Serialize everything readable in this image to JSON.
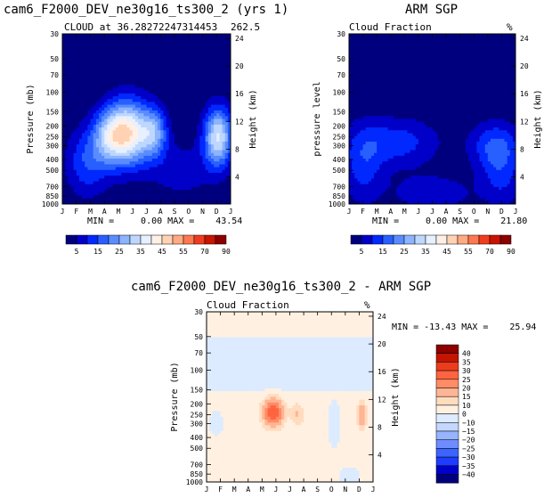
{
  "chart_data": [
    {
      "type": "heatmap",
      "panel": "model",
      "title": "cam6_F2000_DEV_ne30g16_ts300_2 (yrs 1)",
      "subtitle_left": "CLOUD at 36.28272247314453",
      "subtitle_right": "262.5",
      "ylabel": "Pressure (mb)",
      "y2label": "Height (km)",
      "x_ticks": [
        "J",
        "F",
        "M",
        "A",
        "M",
        "J",
        "J",
        "A",
        "S",
        "O",
        "N",
        "D",
        "J"
      ],
      "y_ticks": [
        "30",
        "50",
        "70",
        "100",
        "150",
        "200",
        "250",
        "300",
        "400",
        "500",
        "700",
        "850",
        "1000"
      ],
      "y_ticks_values": [
        30,
        50,
        70,
        100,
        150,
        200,
        250,
        300,
        400,
        500,
        700,
        850,
        1000
      ],
      "y2_ticks": [
        "24",
        "20",
        "16",
        "12",
        "8",
        "4"
      ],
      "y2_ticks_values": [
        24,
        20,
        16,
        12,
        8,
        4
      ],
      "min_label": "MIN =",
      "min_value": "0.00",
      "max_label": "MAX =",
      "max_value": "43.54",
      "features": [
        {
          "month": 4.7,
          "pressure": 230,
          "peak": 42,
          "dm": 1.6,
          "dp": 0.65
        },
        {
          "month": 3.3,
          "pressure": 250,
          "peak": 18,
          "dm": 1.2,
          "dp": 0.55
        },
        {
          "month": 6.6,
          "pressure": 230,
          "peak": 20,
          "dm": 0.9,
          "dp": 0.5
        },
        {
          "month": 11.1,
          "pressure": 250,
          "peak": 35,
          "dm": 1.0,
          "dp": 0.6
        },
        {
          "month": 1.8,
          "pressure": 420,
          "peak": 14,
          "dm": 1.5,
          "dp": 0.7
        },
        {
          "month": 8.5,
          "pressure": 500,
          "peak": 7,
          "dm": 2.5,
          "dp": 0.6
        }
      ]
    },
    {
      "type": "heatmap",
      "panel": "observation",
      "title": "ARM SGP",
      "subtitle_left": "Cloud Fraction",
      "subtitle_right": "%",
      "ylabel": "pressure level",
      "y2label": "Height (km)",
      "x_ticks": [
        "J",
        "F",
        "M",
        "A",
        "M",
        "J",
        "J",
        "A",
        "S",
        "O",
        "N",
        "D",
        "J"
      ],
      "y_ticks": [
        "30",
        "50",
        "70",
        "100",
        "150",
        "200",
        "250",
        "300",
        "400",
        "500",
        "700",
        "850",
        "1000"
      ],
      "y_ticks_values": [
        30,
        50,
        70,
        100,
        150,
        200,
        250,
        300,
        400,
        500,
        700,
        850,
        1000
      ],
      "y2_ticks": [
        "24",
        "20",
        "16",
        "12",
        "8",
        "4"
      ],
      "y2_ticks_values": [
        24,
        20,
        16,
        12,
        8,
        4
      ],
      "min_label": "MIN =",
      "min_value": "0.00",
      "max_label": "MAX =",
      "max_value": "21.80",
      "features": [
        {
          "month": 3.5,
          "pressure": 280,
          "peak": 12,
          "dm": 3.0,
          "dp": 0.5
        },
        {
          "month": 10.5,
          "pressure": 300,
          "peak": 13,
          "dm": 1.8,
          "dp": 0.5
        },
        {
          "month": 1.0,
          "pressure": 450,
          "peak": 11,
          "dm": 1.5,
          "dp": 0.8
        },
        {
          "month": 11.0,
          "pressure": 550,
          "peak": 10,
          "dm": 1.5,
          "dp": 0.7
        },
        {
          "month": 6.0,
          "pressure": 800,
          "peak": 8,
          "dm": 3.0,
          "dp": 0.4
        }
      ]
    },
    {
      "type": "heatmap",
      "panel": "difference",
      "title": "cam6_F2000_DEV_ne30g16_ts300_2 - ARM SGP",
      "subtitle_left": "Cloud Fraction",
      "subtitle_right": "%",
      "ylabel": "Pressure (mb)",
      "y2label": "Height (km)",
      "x_ticks": [
        "J",
        "F",
        "M",
        "A",
        "M",
        "J",
        "J",
        "A",
        "S",
        "O",
        "N",
        "D",
        "J"
      ],
      "y_ticks": [
        "30",
        "50",
        "70",
        "100",
        "150",
        "200",
        "250",
        "300",
        "400",
        "500",
        "700",
        "850",
        "1000"
      ],
      "y_ticks_values": [
        30,
        50,
        70,
        100,
        150,
        200,
        250,
        300,
        400,
        500,
        700,
        850,
        1000
      ],
      "y2_ticks": [
        "24",
        "20",
        "16",
        "12",
        "8",
        "4"
      ],
      "y2_ticks_values": [
        24,
        20,
        16,
        12,
        8,
        4
      ],
      "min_label": "MIN =",
      "min_value": "-13.43",
      "max_label": "MAX =",
      "max_value": "25.94",
      "features": [
        {
          "month": 4.8,
          "pressure": 240,
          "peak": 26,
          "dm": 0.9,
          "dp": 0.35
        },
        {
          "month": 6.6,
          "pressure": 250,
          "peak": 12,
          "dm": 0.5,
          "dp": 0.3
        },
        {
          "month": 11.2,
          "pressure": 250,
          "peak": 18,
          "dm": 0.4,
          "dp": 0.35
        },
        {
          "month": 9.2,
          "pressure": 300,
          "peak": -8,
          "dm": 0.5,
          "dp": 0.5
        },
        {
          "month": 0.7,
          "pressure": 300,
          "peak": -6,
          "dm": 0.6,
          "dp": 0.3
        },
        {
          "month": 10.3,
          "pressure": 900,
          "peak": -8,
          "dm": 0.8,
          "dp": 0.2
        }
      ]
    }
  ],
  "colorbar_abs": {
    "colors": [
      "#00007f",
      "#0000c8",
      "#0028ff",
      "#2860ff",
      "#5a8cff",
      "#8cb4ff",
      "#bed7ff",
      "#e6f0ff",
      "#fff0e6",
      "#ffd2b4",
      "#ffaa82",
      "#ff7850",
      "#f03c1e",
      "#c81400",
      "#8c0000"
    ],
    "labels": [
      "5",
      "15",
      "25",
      "35",
      "45",
      "55",
      "70",
      "90"
    ],
    "levels": [
      0,
      5,
      10,
      15,
      20,
      25,
      30,
      35,
      40,
      45,
      50,
      55,
      60,
      70,
      80,
      90
    ]
  },
  "colorbar_diff": {
    "colors": [
      "#00007f",
      "#0000c8",
      "#1e3cff",
      "#3c64ff",
      "#6e8cff",
      "#96b4ff",
      "#c3d7ff",
      "#dcebff",
      "#fff0e1",
      "#ffdcbe",
      "#ffb496",
      "#ff8c64",
      "#ff6441",
      "#eb3c1e",
      "#c31400",
      "#8c0000"
    ],
    "labels": [
      "40",
      "35",
      "30",
      "25",
      "20",
      "15",
      "10",
      "0",
      "−10",
      "−15",
      "−20",
      "−25",
      "−30",
      "−35",
      "−40"
    ],
    "levels": [
      -50,
      -40,
      -35,
      -30,
      -25,
      -20,
      -15,
      -10,
      0,
      10,
      15,
      20,
      25,
      30,
      35,
      40,
      50
    ]
  }
}
